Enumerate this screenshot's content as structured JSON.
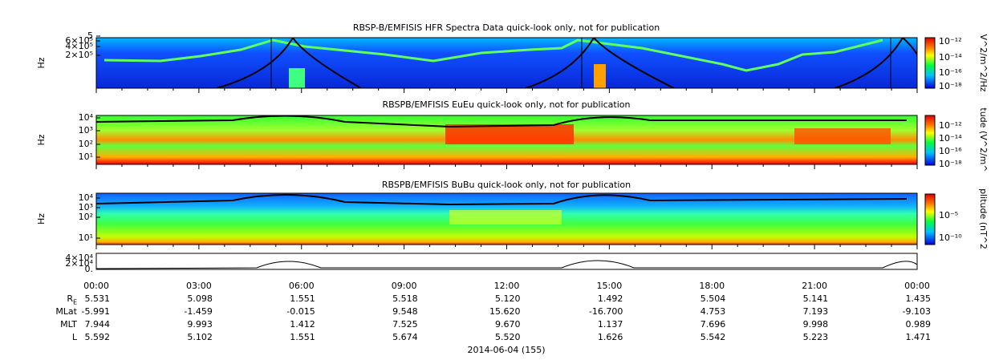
{
  "panels": [
    {
      "title": "RBSP-B/EMFISIS  HFR Spectra Data quick-look only, not for publication",
      "ylabel": "Hz",
      "yticks": [
        "5",
        "6×10⁵",
        "4×10⁵",
        "2×10⁵"
      ],
      "colorbar_label": "V^2/m^2/Hz",
      "colorbar_ticks": [
        "10⁻¹²",
        "10⁻¹⁴",
        "10⁻¹⁶",
        "10⁻¹⁸"
      ]
    },
    {
      "title": "RBSPB/EMFISIS  EuEu quick-look only, not for publication",
      "ylabel": "Hz",
      "yticks": [
        "10⁴",
        "10³",
        "10²",
        "10¹"
      ],
      "colorbar_label": "tude (V^2/m^",
      "colorbar_ticks": [
        "10⁻¹²",
        "10⁻¹⁴",
        "10⁻¹⁶",
        "10⁻¹⁸"
      ]
    },
    {
      "title": "RBSPB/EMFISIS  BuBu quick-look only, not for publication",
      "ylabel": "Hz",
      "yticks": [
        "10⁴",
        "10³",
        "10²",
        "10¹"
      ],
      "colorbar_label": "plitude (nT^2",
      "colorbar_ticks": [
        "10⁻⁵",
        "10⁻¹⁰"
      ]
    }
  ],
  "line_panel": {
    "yticks": [
      "4×10⁴",
      "2×10⁴",
      "0."
    ]
  },
  "time_ticks": [
    "00:00",
    "03:00",
    "06:00",
    "09:00",
    "12:00",
    "15:00",
    "18:00",
    "21:00",
    "00:00"
  ],
  "ephemeris": [
    {
      "label": "R",
      "subscript": "E",
      "values": [
        "5.531",
        "5.098",
        "1.551",
        "5.518",
        "5.120",
        "1.492",
        "5.504",
        "5.141",
        "1.435"
      ]
    },
    {
      "label": "MLat",
      "values": [
        "-5.991",
        "-1.459",
        "-0.015",
        "9.548",
        "15.620",
        "-16.700",
        "4.753",
        "7.193",
        "-9.103"
      ]
    },
    {
      "label": "MLT",
      "values": [
        "7.944",
        "9.993",
        "1.412",
        "7.525",
        "9.670",
        "1.137",
        "7.696",
        "9.998",
        "0.989"
      ]
    },
    {
      "label": "L",
      "values": [
        "5.592",
        "5.102",
        "1.551",
        "5.674",
        "5.520",
        "1.626",
        "5.542",
        "5.223",
        "1.471"
      ]
    }
  ],
  "date": "2014-06-04 (155)"
}
